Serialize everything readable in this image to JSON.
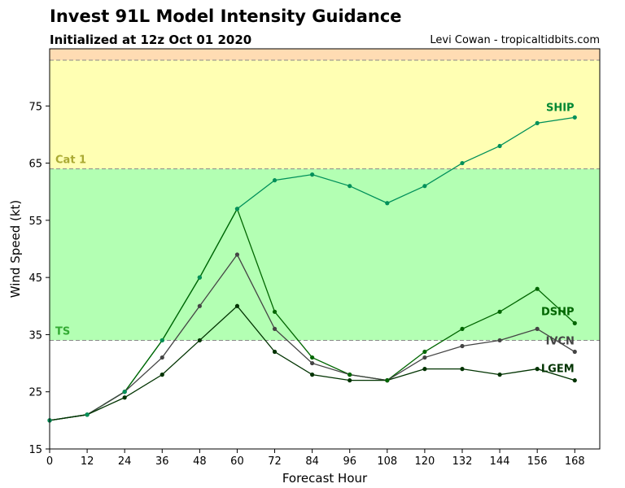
{
  "chart_data": {
    "type": "line",
    "title": "Invest 91L Model Intensity Guidance",
    "subtitle": "Initialized at 12z Oct 01 2020",
    "credit": "Levi Cowan - tropicaltidbits.com",
    "xlabel": "Forecast Hour",
    "ylabel": "Wind Speed (kt)",
    "xlim": [
      0,
      176
    ],
    "ylim": [
      15,
      85
    ],
    "x_ticks": [
      0,
      12,
      24,
      36,
      48,
      60,
      72,
      84,
      96,
      108,
      120,
      132,
      144,
      156,
      168
    ],
    "y_ticks": [
      15,
      25,
      35,
      45,
      55,
      65,
      75
    ],
    "bands": [
      {
        "from": 15,
        "to": 34,
        "color": "#ffffff",
        "label": ""
      },
      {
        "from": 34,
        "to": 64,
        "color": "#b3ffb3",
        "label": "TS",
        "label_color": "#33aa33"
      },
      {
        "from": 64,
        "to": 83,
        "color": "#ffffb3",
        "label": "Cat 1",
        "label_color": "#aaaa33"
      },
      {
        "from": 83,
        "to": 85,
        "color": "#ffdcb3",
        "label": ""
      }
    ],
    "series": [
      {
        "name": "SHIP",
        "color": "#00905a",
        "label_color": "#008833",
        "x": [
          0,
          12,
          24,
          36,
          48,
          60,
          72,
          84,
          96,
          108,
          120,
          132,
          144,
          156,
          168
        ],
        "values": [
          20,
          21,
          25,
          34,
          45,
          57,
          62,
          63,
          61,
          58,
          61,
          65,
          68,
          72,
          73
        ]
      },
      {
        "name": "DSHP",
        "color": "#006600",
        "label_color": "#006600",
        "x": [
          0,
          12,
          24,
          36,
          48,
          60,
          72,
          84,
          96,
          108,
          120,
          132,
          144,
          156,
          168
        ],
        "values": [
          20,
          21,
          25,
          34,
          45,
          57,
          39,
          31,
          28,
          27,
          32,
          36,
          39,
          43,
          37
        ]
      },
      {
        "name": "IVCN",
        "color": "#444444",
        "label_color": "#444444",
        "x": [
          0,
          12,
          24,
          36,
          48,
          60,
          72,
          84,
          96,
          108,
          120,
          132,
          144,
          156,
          168
        ],
        "values": [
          20,
          21,
          25,
          31,
          40,
          49,
          36,
          30,
          28,
          27,
          31,
          33,
          34,
          36,
          32
        ]
      },
      {
        "name": "LGEM",
        "color": "#003300",
        "label_color": "#003300",
        "x": [
          0,
          12,
          24,
          36,
          48,
          60,
          72,
          84,
          96,
          108,
          120,
          132,
          144,
          156,
          168
        ],
        "values": [
          20,
          21,
          24,
          28,
          34,
          40,
          32,
          28,
          27,
          27,
          29,
          29,
          28,
          29,
          27
        ]
      }
    ],
    "grid": false,
    "legend": "series names at line ends"
  }
}
